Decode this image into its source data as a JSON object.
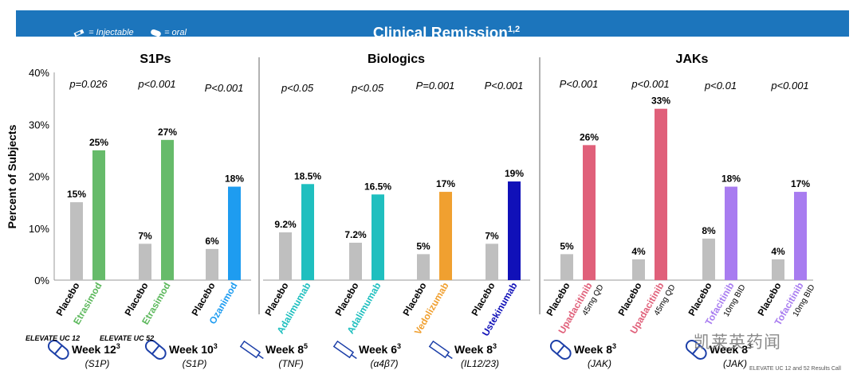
{
  "header": {
    "legend_injectable": "= Injectable",
    "legend_oral": "= oral",
    "title": "Clinical Remission",
    "title_sup": "1,2"
  },
  "chart_data": {
    "type": "bar",
    "ylabel": "Percent of Subjects",
    "ylim": [
      0,
      40
    ],
    "yticks": [
      "0%",
      "10%",
      "20%",
      "30%",
      "40%"
    ],
    "grid": false,
    "sections": [
      "S1Ps",
      "Biologics",
      "JAKs"
    ],
    "groups": [
      {
        "section": "S1Ps",
        "pvalue": "p=0.026",
        "bars": [
          {
            "label": "Placebo",
            "value": 15,
            "value_label": "15%",
            "color": "#bfbfbf",
            "label_color": "#000000"
          },
          {
            "label": "Etrasimod",
            "value": 25,
            "value_label": "25%",
            "color": "#66bb6a",
            "label_color": "#5cb85c"
          }
        ]
      },
      {
        "section": "S1Ps",
        "pvalue": "p<0.001",
        "bars": [
          {
            "label": "Placebo",
            "value": 7,
            "value_label": "7%",
            "color": "#bfbfbf",
            "label_color": "#000000"
          },
          {
            "label": "Etrasimod",
            "value": 27,
            "value_label": "27%",
            "color": "#66bb6a",
            "label_color": "#5cb85c"
          }
        ]
      },
      {
        "section": "S1Ps",
        "pvalue": "P<0.001",
        "bars": [
          {
            "label": "Placebo",
            "value": 6,
            "value_label": "6%",
            "color": "#bfbfbf",
            "label_color": "#000000"
          },
          {
            "label": "Ozanimod",
            "value": 18,
            "value_label": "18%",
            "color": "#1e9cf0",
            "label_color": "#1e9cf0"
          }
        ]
      },
      {
        "section": "Biologics",
        "pvalue": "p<0.05",
        "bars": [
          {
            "label": "Placebo",
            "value": 9.2,
            "value_label": "9.2%",
            "color": "#bfbfbf",
            "label_color": "#000000"
          },
          {
            "label": "Adalimumab",
            "value": 18.5,
            "value_label": "18.5%",
            "color": "#1fbfbf",
            "label_color": "#1fbfbf"
          }
        ]
      },
      {
        "section": "Biologics",
        "pvalue": "p<0.05",
        "bars": [
          {
            "label": "Placebo",
            "value": 7.2,
            "value_label": "7.2%",
            "color": "#bfbfbf",
            "label_color": "#000000"
          },
          {
            "label": "Adalimumab",
            "value": 16.5,
            "value_label": "16.5%",
            "color": "#1fbfbf",
            "label_color": "#1fbfbf"
          }
        ]
      },
      {
        "section": "Biologics",
        "pvalue": "P=0.001",
        "bars": [
          {
            "label": "Placebo",
            "value": 5,
            "value_label": "5%",
            "color": "#bfbfbf",
            "label_color": "#000000"
          },
          {
            "label": "Vedolizumab",
            "value": 17,
            "value_label": "17%",
            "color": "#f0a030",
            "label_color": "#f0a030"
          }
        ]
      },
      {
        "section": "Biologics",
        "pvalue": "P<0.001",
        "bars": [
          {
            "label": "Placebo",
            "value": 7,
            "value_label": "7%",
            "color": "#bfbfbf",
            "label_color": "#000000"
          },
          {
            "label": "Ustekinumab",
            "value": 19,
            "value_label": "19%",
            "color": "#1010b8",
            "label_color": "#1010b8"
          }
        ]
      },
      {
        "section": "JAKs",
        "pvalue": "P<0.001",
        "bars": [
          {
            "label": "Placebo",
            "value": 5,
            "value_label": "5%",
            "color": "#bfbfbf",
            "label_color": "#000000"
          },
          {
            "label": "Upadacitinib",
            "sublabel": "45mg QD",
            "value": 26,
            "value_label": "26%",
            "color": "#e0607a",
            "label_color": "#e0607a"
          }
        ]
      },
      {
        "section": "JAKs",
        "pvalue": "p<0.001",
        "bars": [
          {
            "label": "Placebo",
            "value": 4,
            "value_label": "4%",
            "color": "#bfbfbf",
            "label_color": "#000000"
          },
          {
            "label": "Upadacitinib",
            "sublabel": "45mg QD",
            "value": 33,
            "value_label": "33%",
            "color": "#e0607a",
            "label_color": "#e0607a"
          }
        ]
      },
      {
        "section": "JAKs",
        "pvalue": "p<0.01",
        "bars": [
          {
            "label": "Placebo",
            "value": 8,
            "value_label": "8%",
            "color": "#bfbfbf",
            "label_color": "#000000"
          },
          {
            "label": "Tofacitinib",
            "sublabel": "10mg BID",
            "value": 18,
            "value_label": "18%",
            "color": "#a87cf0",
            "label_color": "#a87cf0"
          }
        ]
      },
      {
        "section": "JAKs",
        "pvalue": "p<0.001",
        "bars": [
          {
            "label": "Placebo",
            "value": 4,
            "value_label": "4%",
            "color": "#bfbfbf",
            "label_color": "#000000"
          },
          {
            "label": "Tofacitinib",
            "sublabel": "10mg BID",
            "value": 17,
            "value_label": "17%",
            "color": "#a87cf0",
            "label_color": "#a87cf0"
          }
        ]
      }
    ],
    "timepoints": [
      {
        "week": "Week 12",
        "sup": "3",
        "sub": "(S1P)",
        "icon": "oral"
      },
      {
        "week": "Week 10",
        "sup": "3",
        "sub": "(S1P)",
        "icon": "oral"
      },
      {
        "week": "Week 8",
        "sup": "5",
        "sub": "(TNF)",
        "icon": "injectable"
      },
      {
        "week": "Week 6",
        "sup": "3",
        "sub": "(α4β7)",
        "icon": "injectable"
      },
      {
        "week": "Week 8",
        "sup": "3",
        "sub": "(IL12/23)",
        "icon": "injectable"
      },
      {
        "week": "Week 8",
        "sup": "3",
        "sub": "(JAK)",
        "icon": "oral"
      },
      {
        "week": "Week 8",
        "sup": "3",
        "sub": "(JAK)",
        "icon": "oral"
      }
    ]
  },
  "footer": {
    "trial_1": "ELEVATE UC 12",
    "trial_2": "ELEVATE UC 52",
    "footnote": "ELEVATE UC 12 and 52 Results Call",
    "watermark": "凯莱英药闻"
  }
}
